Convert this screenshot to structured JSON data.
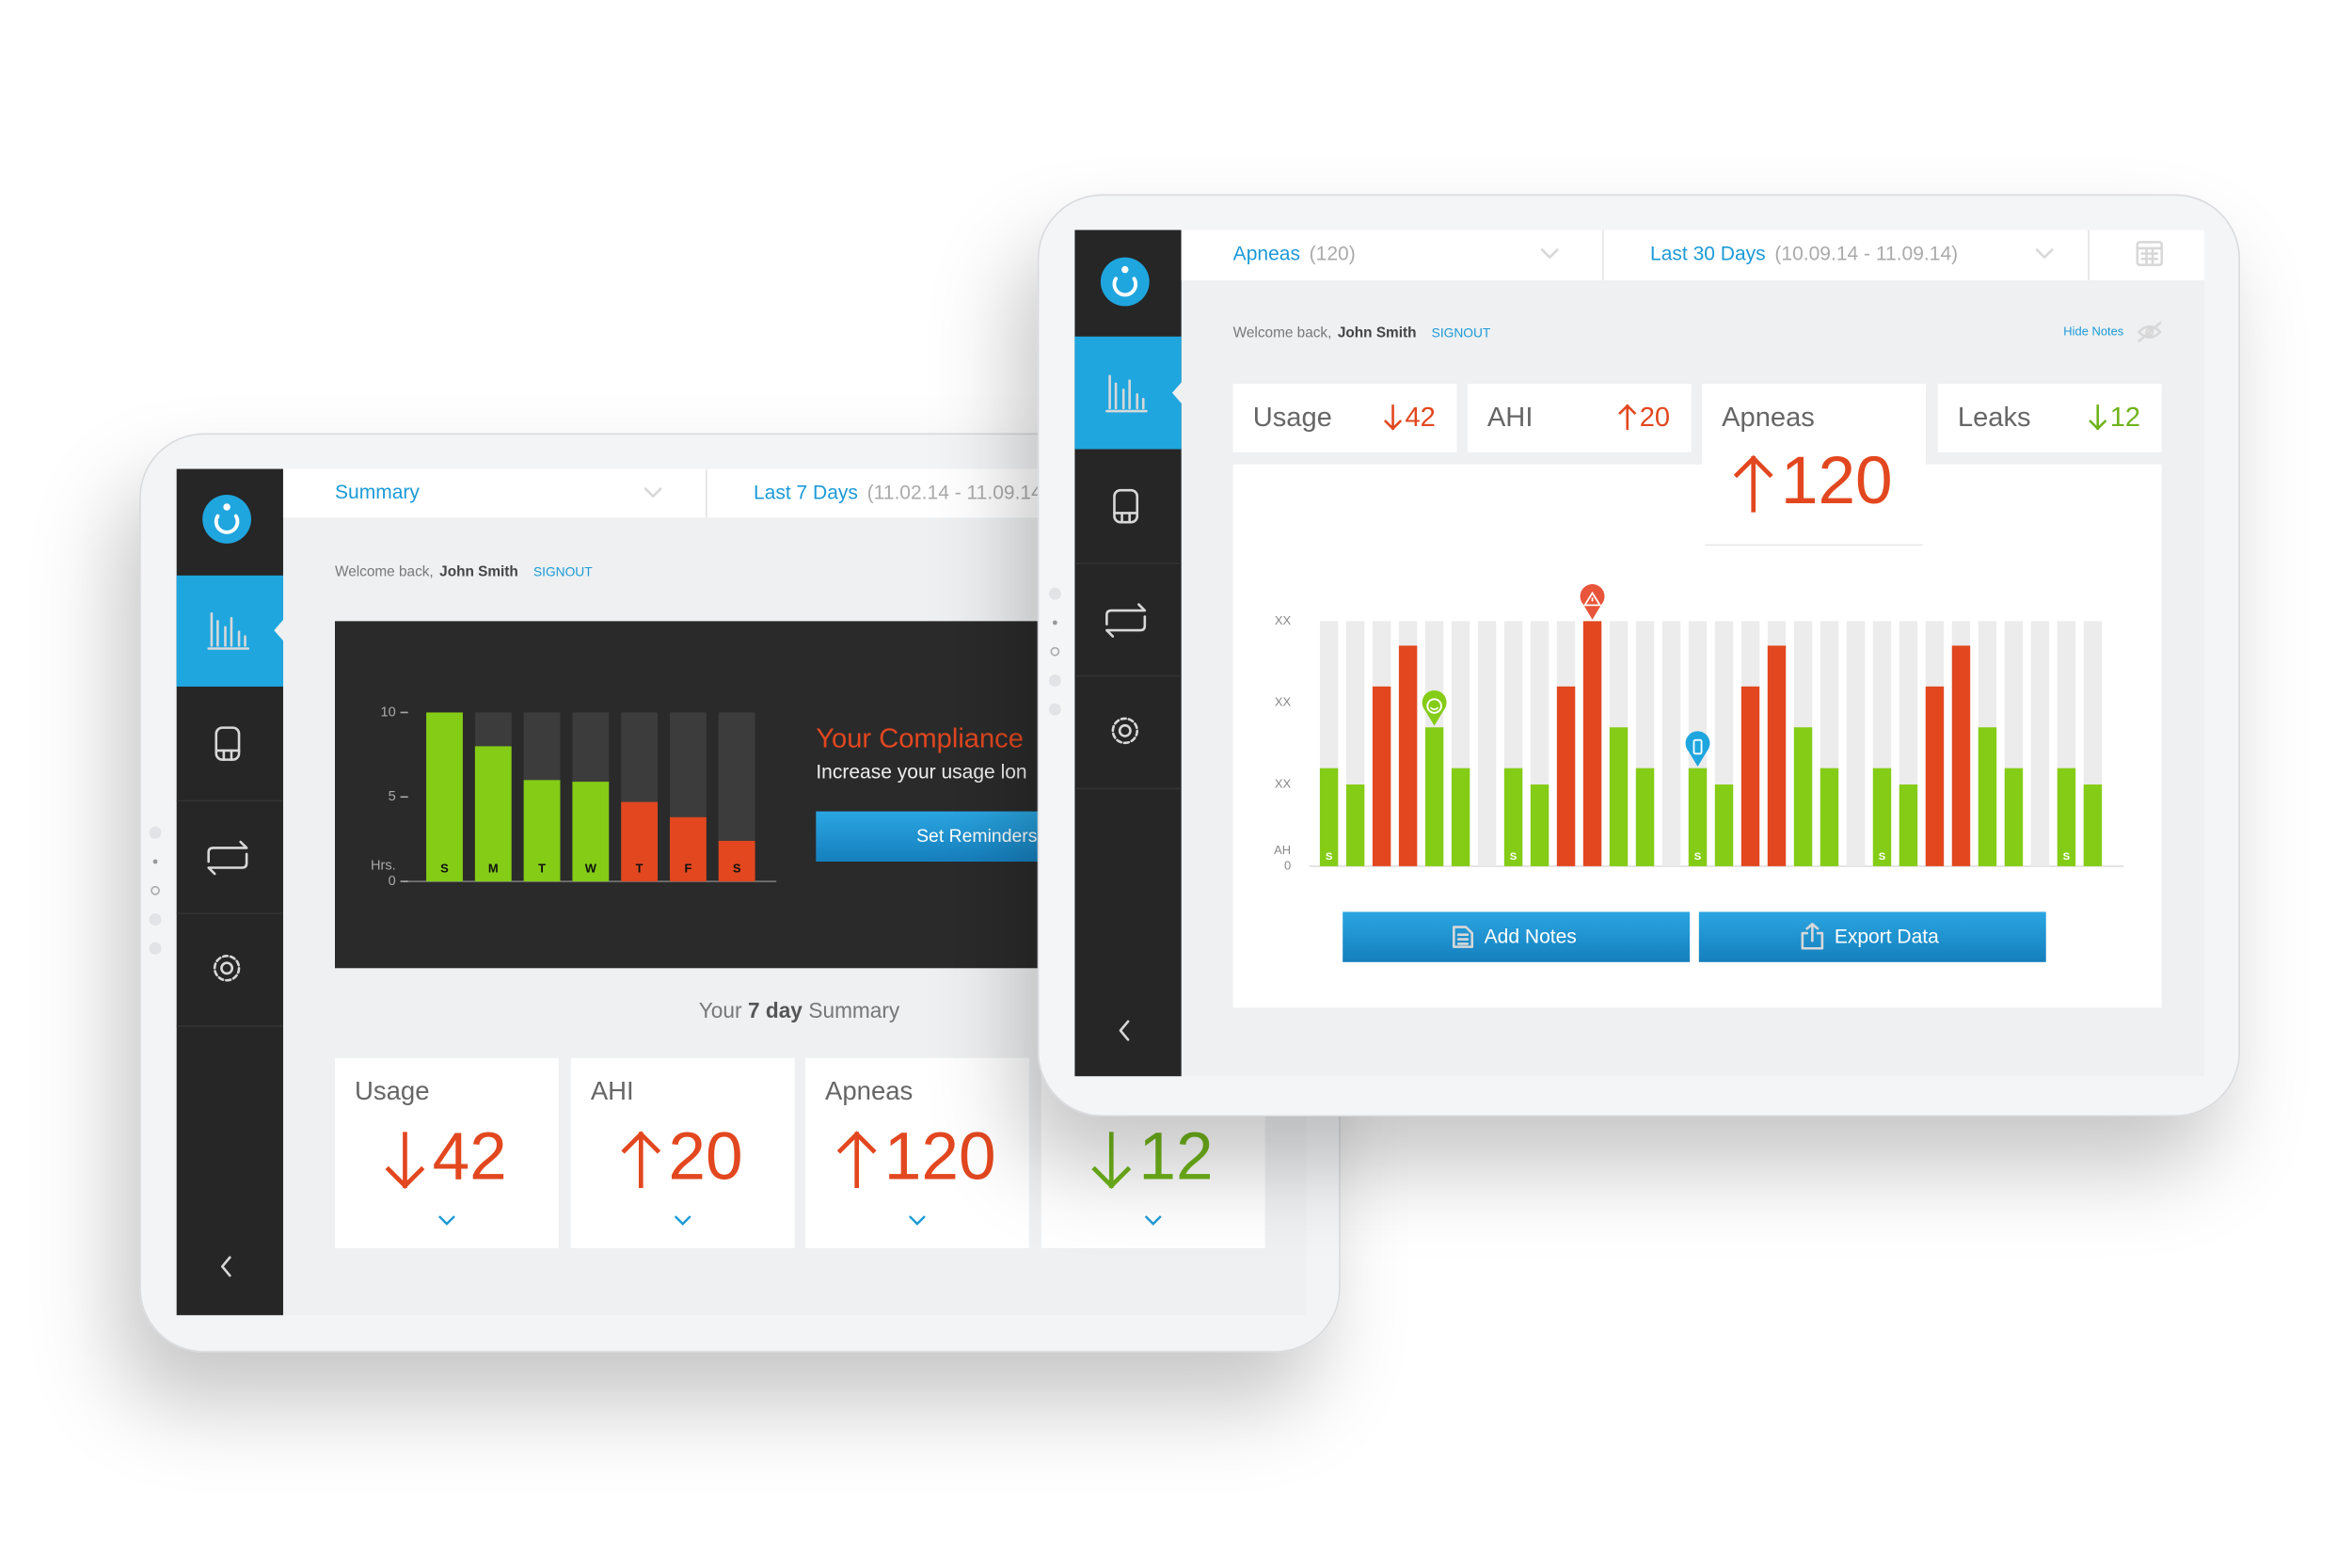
{
  "left_tablet": {
    "nav": {
      "selector": "Summary",
      "range": "Last 7 Days",
      "range_dates": "(11.02.14 - 11.09.14)"
    },
    "welcome": {
      "greeting": "Welcome back,",
      "user": "John Smith",
      "signout": "SIGNOUT"
    },
    "banner": {
      "title": "Your Compliance",
      "text": "Increase your usage lon",
      "button": "Set Reminders"
    },
    "summary_title": {
      "lead": "Your",
      "emphasis": "7 day",
      "tail": "Summary"
    },
    "cards": [
      {
        "label": "Usage",
        "value": 42,
        "trend": "down",
        "color": "#e2471f"
      },
      {
        "label": "AHI",
        "value": 20,
        "trend": "up",
        "color": "#e2471f"
      },
      {
        "label": "Apneas",
        "value": 120,
        "trend": "up",
        "color": "#e2471f"
      },
      {
        "value": 12,
        "trend": "down",
        "color": "#6fb31a"
      }
    ]
  },
  "right_tablet": {
    "nav": {
      "selector": "Apneas",
      "selector_count": "(120)",
      "range": "Last 30 Days",
      "range_dates": "(10.09.14 - 11.09.14)"
    },
    "welcome": {
      "greeting": "Welcome back,",
      "user": "John Smith",
      "signout": "SIGNOUT"
    },
    "hide_notes": "Hide Notes",
    "cards": [
      {
        "label": "Usage",
        "value": 42,
        "trend": "down",
        "color": "#e2471f"
      },
      {
        "label": "AHI",
        "value": 20,
        "trend": "up",
        "color": "#e2471f"
      },
      {
        "label": "Apneas",
        "value": 120,
        "trend": "up",
        "color": "#e2471f",
        "selected": true
      },
      {
        "label": "Leaks",
        "value": 12,
        "trend": "down",
        "color": "#6fb31a"
      }
    ],
    "buttons": {
      "add_notes": "Add Notes",
      "export": "Export Data"
    }
  },
  "chart_data": [
    {
      "type": "bar",
      "ylabel": "Hrs.",
      "categories": [
        "S",
        "M",
        "T",
        "W",
        "T",
        "F",
        "S"
      ],
      "values": [
        10,
        8,
        6,
        5.9,
        4.7,
        3.8,
        2.4
      ],
      "colors": [
        "#84cc16",
        "#84cc16",
        "#84cc16",
        "#84cc16",
        "#e2471f",
        "#e2471f",
        "#e2471f"
      ],
      "ylim": [
        0,
        10
      ],
      "yticks": [
        0,
        5,
        10
      ]
    },
    {
      "type": "bar",
      "ylabel": "AH",
      "categories": [
        "S",
        null,
        null,
        null,
        null,
        null,
        null,
        "S",
        null,
        null,
        null,
        null,
        null,
        null,
        "S",
        null,
        null,
        null,
        null,
        null,
        null,
        "S",
        null,
        null,
        null,
        null,
        null,
        null,
        "S",
        null
      ],
      "values": [
        1.2,
        1.0,
        2.2,
        2.7,
        1.7,
        1.2,
        null,
        1.2,
        1.0,
        2.2,
        3.0,
        1.7,
        1.2,
        null,
        1.2,
        1.0,
        2.2,
        2.7,
        1.7,
        1.2,
        null,
        1.2,
        1.0,
        2.2,
        2.7,
        1.7,
        1.2,
        null,
        1.2,
        1.0
      ],
      "colors": [
        "#84cc16",
        "#84cc16",
        "#e2471f",
        "#e2471f",
        "#84cc16",
        "#84cc16",
        null,
        "#84cc16",
        "#84cc16",
        "#e2471f",
        "#e2471f",
        "#84cc16",
        "#84cc16",
        null,
        "#84cc16",
        "#84cc16",
        "#e2471f",
        "#e2471f",
        "#84cc16",
        "#84cc16",
        null,
        "#84cc16",
        "#84cc16",
        "#e2471f",
        "#e2471f",
        "#84cc16",
        "#84cc16",
        null,
        "#84cc16",
        "#84cc16"
      ],
      "ylim": [
        0,
        3
      ],
      "yticks": [
        0,
        {
          "value": 1,
          "label": "XX"
        },
        {
          "value": 2,
          "label": "XX"
        },
        {
          "value": 3,
          "label": "XX"
        }
      ]
    }
  ]
}
